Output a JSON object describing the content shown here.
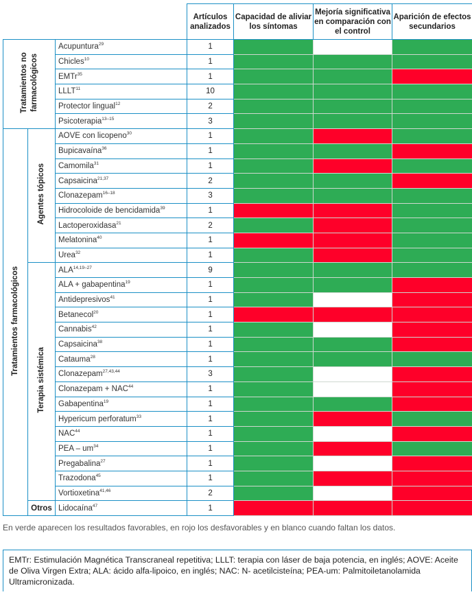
{
  "header": {
    "articles": "Artículos analizados",
    "col1": "Capacidad de aliviar los síntomas",
    "col2": "Mejoría significativa en comparación con el control",
    "col3": "Aparición de efectos secundarios"
  },
  "groups": {
    "non_pharm": "Tratamientos no farmacológicos",
    "pharm": "Tratamientos farmacológicos",
    "topical": "Agentes tópicos",
    "systemic": "Terapia sistémica",
    "others": "Otros"
  },
  "colors": {
    "favorable": "#2eac55",
    "unfavorable": "#fe0029",
    "missing": "#ffffff"
  },
  "rows": [
    {
      "group": "non_pharm",
      "name": "Acupuntura",
      "ref": "29",
      "n": "1",
      "c": [
        "g",
        "w",
        "g"
      ]
    },
    {
      "group": "non_pharm",
      "name": "Chicles",
      "ref": "10",
      "n": "1",
      "c": [
        "g",
        "g",
        "g"
      ]
    },
    {
      "group": "non_pharm",
      "name": "EMTr",
      "ref": "35",
      "n": "1",
      "c": [
        "g",
        "g",
        "r"
      ]
    },
    {
      "group": "non_pharm",
      "name": "LLLT",
      "ref": "11",
      "n": "10",
      "c": [
        "g",
        "g",
        "g"
      ]
    },
    {
      "group": "non_pharm",
      "name": "Protector lingual",
      "ref": "12",
      "n": "2",
      "c": [
        "g",
        "g",
        "g"
      ]
    },
    {
      "group": "non_pharm",
      "name": "Psicoterapia",
      "ref": "13–15",
      "n": "3",
      "c": [
        "g",
        "g",
        "g"
      ]
    },
    {
      "group": "topical",
      "name": "AOVE con licopeno",
      "ref": "30",
      "n": "1",
      "c": [
        "g",
        "r",
        "g"
      ]
    },
    {
      "group": "topical",
      "name": "Bupicavaína",
      "ref": "36",
      "n": "1",
      "c": [
        "g",
        "g",
        "r"
      ]
    },
    {
      "group": "topical",
      "name": "Camomila",
      "ref": "31",
      "n": "1",
      "c": [
        "g",
        "r",
        "g"
      ]
    },
    {
      "group": "topical",
      "name": "Capsaicina",
      "ref": "21,37",
      "n": "2",
      "c": [
        "g",
        "g",
        "r"
      ]
    },
    {
      "group": "topical",
      "name": "Clonazepam",
      "ref": "16–18",
      "n": "3",
      "c": [
        "g",
        "g",
        "g"
      ]
    },
    {
      "group": "topical",
      "name": "Hidrocoloide de bencidamida",
      "ref": "39",
      "n": "1",
      "c": [
        "r",
        "r",
        "g"
      ]
    },
    {
      "group": "topical",
      "name": "Lactoperoxidasa",
      "ref": "21",
      "n": "2",
      "c": [
        "g",
        "r",
        "g"
      ]
    },
    {
      "group": "topical",
      "name": "Melatonina",
      "ref": "40",
      "n": "1",
      "c": [
        "r",
        "r",
        "g"
      ]
    },
    {
      "group": "topical",
      "name": "Urea",
      "ref": "32",
      "n": "1",
      "c": [
        "g",
        "r",
        "g"
      ]
    },
    {
      "group": "systemic",
      "name": "ALA",
      "ref": "14,19–27",
      "n": "9",
      "c": [
        "g",
        "g",
        "g"
      ]
    },
    {
      "group": "systemic",
      "name": "ALA + gabapentina",
      "ref": "19",
      "n": "1",
      "c": [
        "g",
        "g",
        "r"
      ]
    },
    {
      "group": "systemic",
      "name": "Antidepresivos",
      "ref": "41",
      "n": "1",
      "c": [
        "g",
        "w",
        "r"
      ]
    },
    {
      "group": "systemic",
      "name": "Betanecol",
      "ref": "20",
      "n": "1",
      "c": [
        "r",
        "r",
        "r"
      ]
    },
    {
      "group": "systemic",
      "name": "Cannabis",
      "ref": "42",
      "n": "1",
      "c": [
        "g",
        "w",
        "r"
      ]
    },
    {
      "group": "systemic",
      "name": "Capsaicina",
      "ref": "38",
      "n": "1",
      "c": [
        "g",
        "g",
        "r"
      ]
    },
    {
      "group": "systemic",
      "name": "Catauma",
      "ref": "28",
      "n": "1",
      "c": [
        "g",
        "g",
        "g"
      ]
    },
    {
      "group": "systemic",
      "name": "Clonazepam",
      "ref": "27,43,44",
      "n": "3",
      "c": [
        "g",
        "w",
        "r"
      ]
    },
    {
      "group": "systemic",
      "name": "Clonazepam + NAC",
      "ref": "44",
      "n": "1",
      "c": [
        "g",
        "w",
        "r"
      ]
    },
    {
      "group": "systemic",
      "name": "Gabapentina",
      "ref": "19",
      "n": "1",
      "c": [
        "g",
        "g",
        "r"
      ]
    },
    {
      "group": "systemic",
      "name": "Hypericum perforatum",
      "ref": "33",
      "n": "1",
      "c": [
        "g",
        "r",
        "g"
      ]
    },
    {
      "group": "systemic",
      "name": "NAC",
      "ref": "44",
      "n": "1",
      "c": [
        "g",
        "w",
        "r"
      ]
    },
    {
      "group": "systemic",
      "name": "PEA – um",
      "ref": "34",
      "n": "1",
      "c": [
        "g",
        "r",
        "g"
      ]
    },
    {
      "group": "systemic",
      "name": "Pregabalina",
      "ref": "27",
      "n": "1",
      "c": [
        "g",
        "w",
        "r"
      ]
    },
    {
      "group": "systemic",
      "name": "Trazodona",
      "ref": "45",
      "n": "1",
      "c": [
        "g",
        "r",
        "r"
      ]
    },
    {
      "group": "systemic",
      "name": "Vortioxetina",
      "ref": "41,46",
      "n": "2",
      "c": [
        "g",
        "w",
        "r"
      ]
    },
    {
      "group": "others",
      "name": "Lidocaína",
      "ref": "47",
      "n": "1",
      "c": [
        "r",
        "r",
        "r"
      ]
    }
  ],
  "legend_note": "En verde aparecen los resultados favorables, en rojo los desfavorables y en blanco cuando faltan los datos.",
  "abbreviations": "EMTr: Estimulación Magnética Transcraneal repetitiva; LLLT: terapia con láser de baja potencia, en inglés; AOVE: Aceite de Oliva Virgen Extra; ALA: ácido alfa-lipoico, en inglés; NAC: N- acetilcisteína; PEA-um: Palmitoiletanolamida Ultramicronizada."
}
